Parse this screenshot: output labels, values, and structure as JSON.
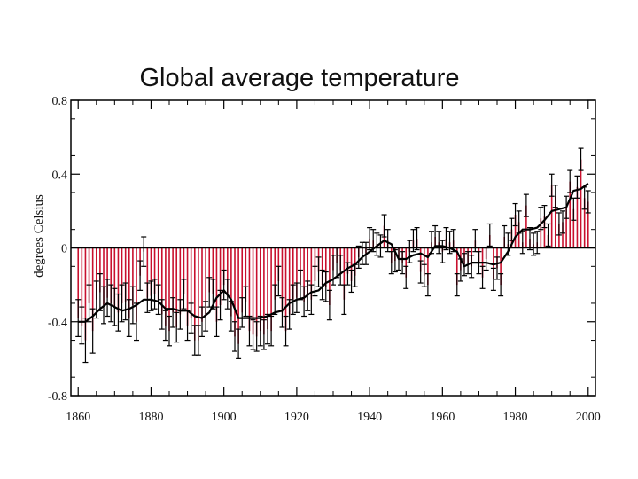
{
  "chart_data": {
    "type": "bar",
    "title": "Global average temperature",
    "xlabel": "",
    "ylabel": "degrees Celsius",
    "xlim": [
      1858,
      2002
    ],
    "ylim": [
      -0.8,
      0.8
    ],
    "x_ticks": [
      1860,
      1880,
      1900,
      1920,
      1940,
      1960,
      1980,
      2000
    ],
    "y_ticks": [
      0.8,
      0.4,
      0,
      -0.4,
      -0.8
    ],
    "y_tick_labels": [
      "0.8",
      "0.4",
      "0",
      "-0.4",
      "-0.8"
    ],
    "grid": false,
    "bar_color": "#c8102e",
    "line_color": "#000000",
    "series": [
      {
        "type": "bar",
        "x": [
          1860,
          1861,
          1862,
          1863,
          1864,
          1865,
          1866,
          1867,
          1868,
          1869,
          1870,
          1871,
          1872,
          1873,
          1874,
          1875,
          1876,
          1877,
          1878,
          1879,
          1880,
          1881,
          1882,
          1883,
          1884,
          1885,
          1886,
          1887,
          1888,
          1889,
          1890,
          1891,
          1892,
          1893,
          1894,
          1895,
          1896,
          1897,
          1898,
          1899,
          1900,
          1901,
          1902,
          1903,
          1904,
          1905,
          1906,
          1907,
          1908,
          1909,
          1910,
          1911,
          1912,
          1913,
          1914,
          1915,
          1916,
          1917,
          1918,
          1919,
          1920,
          1921,
          1922,
          1923,
          1924,
          1925,
          1926,
          1927,
          1928,
          1929,
          1930,
          1931,
          1932,
          1933,
          1934,
          1935,
          1936,
          1937,
          1938,
          1939,
          1940,
          1941,
          1942,
          1943,
          1944,
          1945,
          1946,
          1947,
          1948,
          1949,
          1950,
          1951,
          1952,
          1953,
          1954,
          1955,
          1956,
          1957,
          1958,
          1959,
          1960,
          1961,
          1962,
          1963,
          1964,
          1965,
          1966,
          1967,
          1968,
          1969,
          1970,
          1971,
          1972,
          1973,
          1974,
          1975,
          1976,
          1977,
          1978,
          1979,
          1980,
          1981,
          1982,
          1983,
          1984,
          1985,
          1986,
          1987,
          1988,
          1989,
          1990,
          1991,
          1992,
          1993,
          1994,
          1995,
          1996,
          1997,
          1998,
          1999,
          2000
        ],
        "values": [
          -0.38,
          -0.42,
          -0.5,
          -0.3,
          -0.45,
          -0.28,
          -0.24,
          -0.31,
          -0.27,
          -0.3,
          -0.32,
          -0.35,
          -0.3,
          -0.29,
          -0.38,
          -0.31,
          -0.4,
          -0.15,
          -0.02,
          -0.27,
          -0.26,
          -0.25,
          -0.28,
          -0.36,
          -0.42,
          -0.45,
          -0.35,
          -0.43,
          -0.36,
          -0.25,
          -0.42,
          -0.38,
          -0.5,
          -0.5,
          -0.4,
          -0.37,
          -0.24,
          -0.25,
          -0.4,
          -0.31,
          -0.2,
          -0.25,
          -0.37,
          -0.48,
          -0.52,
          -0.35,
          -0.29,
          -0.45,
          -0.47,
          -0.48,
          -0.45,
          -0.47,
          -0.44,
          -0.45,
          -0.28,
          -0.18,
          -0.35,
          -0.45,
          -0.36,
          -0.28,
          -0.27,
          -0.2,
          -0.29,
          -0.26,
          -0.28,
          -0.18,
          -0.13,
          -0.2,
          -0.21,
          -0.31,
          -0.12,
          -0.08,
          -0.12,
          -0.28,
          -0.14,
          -0.18,
          -0.15,
          -0.05,
          -0.03,
          -0.03,
          0.05,
          0.04,
          0.02,
          0.01,
          0.12,
          0.04,
          -0.08,
          -0.07,
          -0.06,
          -0.08,
          -0.16,
          -0.02,
          0.04,
          0.05,
          -0.13,
          -0.15,
          -0.2,
          0.03,
          0.06,
          0.03,
          -0.02,
          0.05,
          0.03,
          0.04,
          -0.2,
          -0.12,
          -0.09,
          -0.08,
          -0.1,
          0.04,
          -0.08,
          -0.16,
          -0.06,
          0.07,
          -0.17,
          -0.11,
          -0.2,
          0.06,
          0.02,
          0.1,
          0.18,
          0.14,
          0.03,
          0.23,
          0.05,
          0.02,
          0.03,
          0.16,
          0.17,
          0.07,
          0.34,
          0.28,
          0.13,
          0.14,
          0.22,
          0.36,
          0.21,
          0.33,
          0.48,
          0.27,
          0.25
        ],
        "errors": [
          0.1,
          0.1,
          0.12,
          0.1,
          0.12,
          0.1,
          0.1,
          0.1,
          0.1,
          0.1,
          0.1,
          0.1,
          0.1,
          0.1,
          0.1,
          0.1,
          0.1,
          0.08,
          0.08,
          0.08,
          0.08,
          0.08,
          0.08,
          0.08,
          0.08,
          0.08,
          0.08,
          0.08,
          0.08,
          0.08,
          0.08,
          0.08,
          0.08,
          0.08,
          0.08,
          0.08,
          0.08,
          0.08,
          0.08,
          0.08,
          0.08,
          0.08,
          0.08,
          0.08,
          0.08,
          0.08,
          0.08,
          0.08,
          0.08,
          0.08,
          0.08,
          0.08,
          0.08,
          0.08,
          0.08,
          0.08,
          0.08,
          0.08,
          0.08,
          0.08,
          0.08,
          0.08,
          0.08,
          0.08,
          0.08,
          0.08,
          0.08,
          0.08,
          0.08,
          0.08,
          0.08,
          0.08,
          0.08,
          0.08,
          0.06,
          0.06,
          0.06,
          0.06,
          0.06,
          0.06,
          0.06,
          0.06,
          0.06,
          0.06,
          0.06,
          0.06,
          0.06,
          0.06,
          0.06,
          0.06,
          0.06,
          0.06,
          0.06,
          0.06,
          0.06,
          0.06,
          0.06,
          0.06,
          0.06,
          0.06,
          0.06,
          0.06,
          0.06,
          0.06,
          0.06,
          0.06,
          0.06,
          0.06,
          0.06,
          0.06,
          0.06,
          0.06,
          0.06,
          0.06,
          0.06,
          0.06,
          0.06,
          0.06,
          0.06,
          0.06,
          0.06,
          0.06,
          0.06,
          0.06,
          0.06,
          0.06,
          0.06,
          0.06,
          0.06,
          0.06,
          0.06,
          0.06,
          0.06,
          0.06,
          0.06,
          0.06,
          0.06,
          0.06,
          0.06,
          0.06,
          0.06
        ]
      },
      {
        "type": "line",
        "x": [
          1860,
          1862,
          1864,
          1866,
          1868,
          1870,
          1872,
          1874,
          1876,
          1878,
          1880,
          1882,
          1884,
          1886,
          1888,
          1890,
          1892,
          1894,
          1896,
          1898,
          1900,
          1902,
          1904,
          1906,
          1908,
          1910,
          1912,
          1914,
          1916,
          1918,
          1920,
          1922,
          1924,
          1926,
          1928,
          1930,
          1932,
          1934,
          1936,
          1938,
          1940,
          1942,
          1944,
          1946,
          1948,
          1950,
          1952,
          1954,
          1956,
          1958,
          1960,
          1962,
          1964,
          1966,
          1968,
          1970,
          1972,
          1974,
          1976,
          1978,
          1980,
          1982,
          1984,
          1986,
          1988,
          1990,
          1992,
          1994,
          1996,
          1998,
          2000
        ],
        "values": [
          -0.4,
          -0.4,
          -0.37,
          -0.33,
          -0.3,
          -0.32,
          -0.34,
          -0.33,
          -0.31,
          -0.28,
          -0.28,
          -0.29,
          -0.33,
          -0.33,
          -0.34,
          -0.34,
          -0.37,
          -0.38,
          -0.35,
          -0.27,
          -0.23,
          -0.28,
          -0.38,
          -0.38,
          -0.38,
          -0.38,
          -0.37,
          -0.35,
          -0.34,
          -0.3,
          -0.28,
          -0.27,
          -0.24,
          -0.23,
          -0.19,
          -0.17,
          -0.14,
          -0.11,
          -0.09,
          -0.05,
          -0.02,
          0.01,
          0.04,
          0.02,
          -0.06,
          -0.06,
          -0.04,
          -0.03,
          -0.05,
          0.01,
          0.01,
          0.0,
          -0.02,
          -0.1,
          -0.08,
          -0.08,
          -0.08,
          -0.09,
          -0.08,
          -0.02,
          0.06,
          0.1,
          0.1,
          0.11,
          0.15,
          0.2,
          0.21,
          0.22,
          0.31,
          0.32,
          0.35
        ]
      }
    ]
  }
}
